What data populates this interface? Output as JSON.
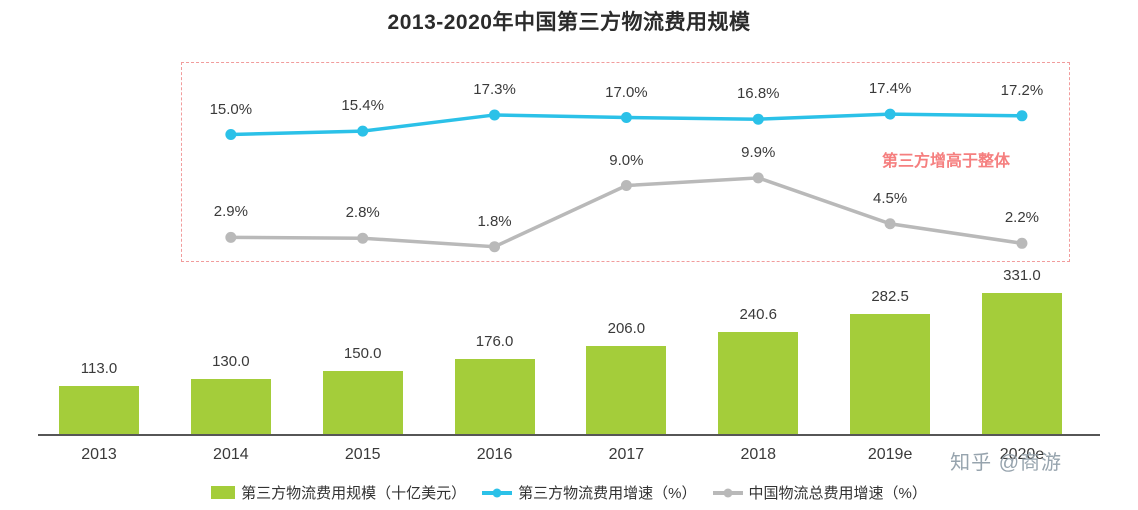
{
  "title": "2013-2020年中国第三方物流费用规模",
  "annotation": "第三方增高于整体",
  "watermark": "知乎 @商游",
  "legend": [
    {
      "label": "第三方物流费用规模（十亿美元）",
      "color": "#a4cd3a",
      "type": "bar"
    },
    {
      "label": "第三方物流费用增速（%）",
      "color": "#2bc1e8",
      "type": "line"
    },
    {
      "label": "中国物流总费用增速（%）",
      "color": "#b9b9b9",
      "type": "line"
    }
  ],
  "chart_data": {
    "type": "bar",
    "title": "2013-2020年中国第三方物流费用规模",
    "categories": [
      "2013",
      "2014",
      "2015",
      "2016",
      "2017",
      "2018",
      "2019e",
      "2020e"
    ],
    "series": [
      {
        "name": "第三方物流费用规模（十亿美元）",
        "type": "bar",
        "unit": "十亿美元",
        "color": "#a4cd3a",
        "values": [
          113.0,
          130.0,
          150.0,
          176.0,
          206.0,
          240.6,
          282.5,
          331.0
        ]
      },
      {
        "name": "第三方物流费用增速（%）",
        "type": "line",
        "unit": "%",
        "color": "#2bc1e8",
        "x": [
          "2014",
          "2015",
          "2016",
          "2017",
          "2018",
          "2019e",
          "2020e"
        ],
        "values": [
          15.0,
          15.4,
          17.3,
          17.0,
          16.8,
          17.4,
          17.2
        ]
      },
      {
        "name": "中国物流总费用增速（%）",
        "type": "line",
        "unit": "%",
        "color": "#b9b9b9",
        "x": [
          "2014",
          "2015",
          "2016",
          "2017",
          "2018",
          "2019e",
          "2020e"
        ],
        "values": [
          2.9,
          2.8,
          1.8,
          9.0,
          9.9,
          4.5,
          2.2
        ]
      }
    ],
    "ylim_bars": [
      0,
      350
    ],
    "ylim_lines": [
      0,
      20
    ],
    "grid": false,
    "legend_position": "bottom"
  }
}
